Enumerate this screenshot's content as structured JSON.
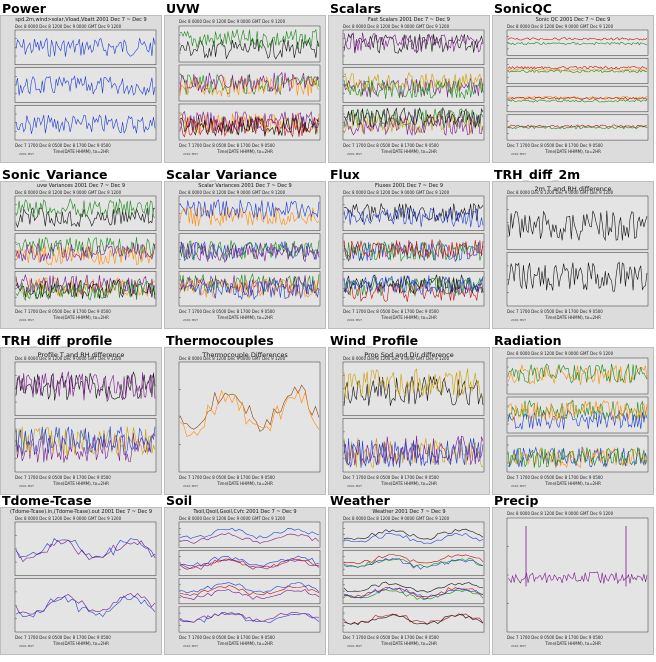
{
  "tiles": [
    {
      "id": "power",
      "title": "Power",
      "plot_title": "spd.2m,wind>solar,Vload,Vbatt 2001 Dec 7 ~ Dec 9",
      "xaxis": "Dec 7 1700  Dec 8 0500  Dec 8 1700  Dec 9 0500",
      "footer": "",
      "panels": 3
    },
    {
      "id": "uvw",
      "title": "UVW",
      "plot_title": "",
      "xaxis": "Dec 7 1700  Dec 8 0500  Dec 8 1700  Dec 9 0500",
      "footer": "",
      "panels": 3
    },
    {
      "id": "scalars",
      "title": "Scalars",
      "plot_title": "Fast Scalars 2001 Dec 7 ~ Dec 9",
      "xaxis": "Dec 7 1700  Dec 8 0500  Dec 8 1700  Dec 9 0500",
      "footer": "",
      "panels": 3
    },
    {
      "id": "sonicqc",
      "title": "SonicQC",
      "plot_title": "Sonic QC 2001 Dec 7 ~ Dec 9",
      "xaxis": "Dec 7 1700  Dec 8 0500  Dec 8 1700  Dec 9 0500",
      "footer": "",
      "panels": 4
    },
    {
      "id": "sonic_variance",
      "title": "Sonic_Variance",
      "plot_title": "uvw Variances 2001 Dec 7 ~ Dec 9",
      "xaxis": "Dec 7 1700  Dec 8 0500  Dec 8 1700  Dec 9 0500",
      "footer": "",
      "panels": 3
    },
    {
      "id": "scalar_variance",
      "title": "Scalar_Variance",
      "plot_title": "Scalar Variances 2001 Dec 7 ~ Dec 9",
      "xaxis": "Dec 7 1700  Dec 8 0500  Dec 8 1700  Dec 9 0500",
      "footer": "",
      "panels": 3
    },
    {
      "id": "flux",
      "title": "Flux",
      "plot_title": "Fluxes 2001 Dec 7 ~ Dec 9",
      "xaxis": "Dec 7 1700  Dec 8 0500  Dec 8 1700  Dec 9 0500",
      "footer": "",
      "panels": 3
    },
    {
      "id": "trh_diff_2m",
      "title": "TRH_diff_2m",
      "plot_title": "2m T and RH difference",
      "xaxis": "Dec 7 1700  Dec 8 0500  Dec 8 1700  Dec 9 0500",
      "footer": "",
      "panels": 2
    },
    {
      "id": "trh_diff_profile",
      "title": "TRH_diff_profile",
      "plot_title": "Profile T and RH difference",
      "xaxis": "Dec 7 1700  Dec 8 0500  Dec 8 1700  Dec 9 0500",
      "footer": "",
      "panels": 2
    },
    {
      "id": "thermocouples",
      "title": "Thermocouples",
      "plot_title": "Thermocouple Differences",
      "xaxis": "Dec 7 1700  Dec 8 0500  Dec 8 1700  Dec 9 0500",
      "footer": "",
      "panels": 1
    },
    {
      "id": "wind_profile",
      "title": "Wind_Profile",
      "plot_title": "Prop Spd and Dir difference",
      "xaxis": "Dec 7 1700  Dec 8 0500  Dec 8 1700  Dec 9 0500",
      "footer": "",
      "panels": 2
    },
    {
      "id": "radiation",
      "title": "Radiation",
      "plot_title": "",
      "xaxis": "Dec 7 1700  Dec 8 0500  Dec 8 1700  Dec 9 0500",
      "footer": "",
      "panels": 3
    },
    {
      "id": "tdome_tcase",
      "title": "Tdome-Tcase",
      "plot_title": "(Tdome-Tcase).in,(Tdome-Tcase).out 2001 Dec 7 ~ Dec 9",
      "xaxis": "Dec 7 1700  Dec 8 0500  Dec 8 1700  Dec 9 0500",
      "footer": "",
      "panels": 2
    },
    {
      "id": "soil",
      "title": "Soil",
      "plot_title": "Tsoil,Qsoil,Gsoil,Cvfc 2001 Dec 7 ~ Dec 9",
      "xaxis": "Dec 7 1700  Dec 8 0500  Dec 8 1700  Dec 9 0500",
      "footer": "",
      "panels": 4
    },
    {
      "id": "weather",
      "title": "Weather",
      "plot_title": "Weather 2001 Dec 7 ~ Dec 9",
      "xaxis": "Dec 7 1700  Dec 8 0500  Dec 8 1700  Dec 9 0500",
      "footer": "",
      "panels": 4
    },
    {
      "id": "precip",
      "title": "Precip",
      "plot_title": "",
      "xaxis": "Dec 7 1700  Dec 8 0500  Dec 8 1700  Dec 9 0500",
      "footer": "",
      "panels": 1
    }
  ],
  "top_axis": "Dec 8 0000   Dec 8 1200   Dec 9 0000 GMT   Dec 9 1200",
  "bottom_axis_label": "Time(DATE HHMM), to=2HR",
  "local_label": "2001 MST",
  "colors": {
    "black": "#111111",
    "blue": "#1f3fd0",
    "red": "#c01010",
    "green": "#1a8a1a",
    "orange": "#ff8c00",
    "purple": "#7a1a8a",
    "brown": "#8b4513",
    "cyan": "#1aa0d0",
    "gold": "#c8a000"
  }
}
